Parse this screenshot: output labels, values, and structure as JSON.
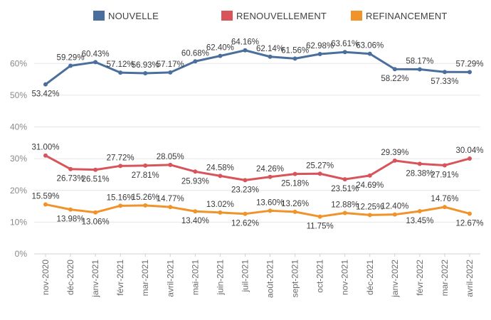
{
  "chart_data": {
    "type": "line",
    "categories": [
      "nov-2020",
      "déc-2020",
      "janv-2021",
      "févr-2021",
      "mar-2021",
      "avril-2021",
      "mai-2021",
      "juin-2021",
      "juil-2021",
      "août-2021",
      "sept-2021",
      "oct-2021",
      "nov-2021",
      "déc-2021",
      "janv-2022",
      "févr-2022",
      "mar-2022",
      "avril-2022"
    ],
    "series": [
      {
        "name": "NOUVELLE",
        "color": "#4a6f9c",
        "values": [
          53.42,
          59.29,
          60.43,
          57.12,
          56.93,
          57.17,
          60.68,
          62.4,
          64.16,
          62.14,
          61.56,
          62.98,
          63.61,
          63.06,
          58.22,
          58.17,
          57.33,
          57.29
        ],
        "labels": [
          "53.42%",
          "59.29%",
          "60.43%",
          "57.12%",
          "56.93%",
          "57.17%",
          "60.68%",
          "62.40%",
          "64.16%",
          "62.14%",
          "61.56%",
          "62.98%",
          "63.61%",
          "63.06%",
          "58.22%",
          "58.17%",
          "57.33%",
          "57.29%"
        ]
      },
      {
        "name": "RENOUVELLEMENT",
        "color": "#d9535a",
        "values": [
          31.0,
          26.73,
          26.51,
          27.72,
          27.81,
          28.05,
          25.93,
          24.58,
          23.23,
          24.26,
          25.18,
          25.27,
          23.51,
          24.69,
          29.39,
          28.38,
          27.91,
          30.04
        ],
        "labels": [
          "31.00%",
          "26.73%",
          "26.51%",
          "27.72%",
          "27.81%",
          "28.05%",
          "25.93%",
          "24.58%",
          "23.23%",
          "24.26%",
          "25.18%",
          "25.27%",
          "23.51%",
          "24.69%",
          "29.39%",
          "28.38%",
          "27.91%",
          "30.04%"
        ]
      },
      {
        "name": "REFINANCEMENT",
        "color": "#f0932b",
        "values": [
          15.59,
          13.98,
          13.06,
          15.16,
          15.26,
          14.77,
          13.4,
          13.02,
          12.62,
          13.6,
          13.26,
          11.75,
          12.88,
          12.25,
          12.4,
          13.45,
          14.76,
          12.67
        ],
        "labels": [
          "15.59%",
          "13.98%",
          "13.06%",
          "15.16%",
          "15.26%",
          "14.77%",
          "13.40%",
          "13.02%",
          "12.62%",
          "13.60%",
          "13.26%",
          "11.75%",
          "12.88%",
          "12.25%",
          "12.40%",
          "13.45%",
          "14.76%",
          "12.67%"
        ]
      }
    ],
    "y_ticks": [
      "0%",
      "10%",
      "20%",
      "30%",
      "40%",
      "50%",
      "60%"
    ],
    "ylim": [
      0,
      70
    ],
    "grid": true,
    "legend": "top"
  }
}
